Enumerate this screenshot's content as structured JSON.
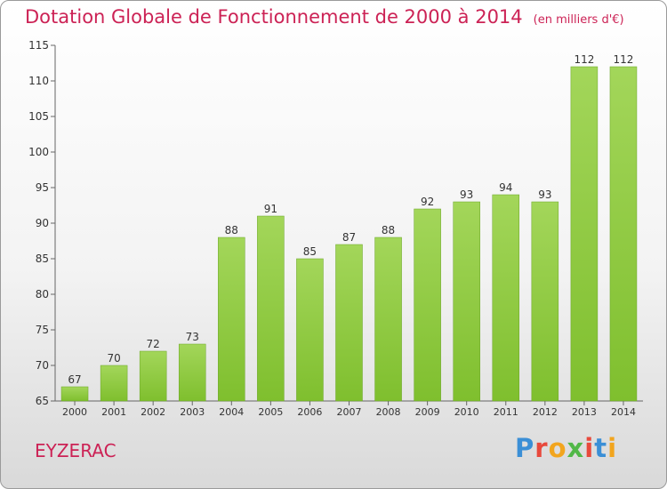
{
  "header": {
    "title": "Dotation Globale de Fonctionnement de 2000 à 2014",
    "subtitle": "(en milliers d'€)"
  },
  "footer": {
    "commune": "EYZERAC",
    "logo_letters": [
      "P",
      "r",
      "o",
      "x",
      "i",
      "t",
      "i"
    ],
    "logo_colors": [
      "#3b8fd6",
      "#e8493c",
      "#f2a51e",
      "#52b848",
      "#e8493c",
      "#3b8fd6",
      "#f2a51e"
    ]
  },
  "chart_data": {
    "type": "bar",
    "categories": [
      "2000",
      "2001",
      "2002",
      "2003",
      "2004",
      "2005",
      "2006",
      "2007",
      "2008",
      "2009",
      "2010",
      "2011",
      "2012",
      "2013",
      "2014"
    ],
    "values": [
      67,
      70,
      72,
      73,
      88,
      91,
      85,
      87,
      88,
      92,
      93,
      94,
      93,
      112,
      112
    ],
    "data_labels": [
      "67",
      "70",
      "72",
      "73",
      "88",
      "91",
      "85",
      "87",
      "88",
      "92",
      "93",
      "94",
      "93",
      "112",
      "112"
    ],
    "ylim": [
      65,
      115
    ],
    "yticks": [
      65,
      70,
      75,
      80,
      85,
      90,
      95,
      100,
      105,
      110,
      115
    ],
    "title": "Dotation Globale de Fonctionnement de 2000 à 2014",
    "subtitle": "(en milliers d'€)",
    "xlabel": "",
    "ylabel": "",
    "grid": false,
    "bar_color": "#7fbf2e",
    "bar_color_light": "#a3d65a"
  }
}
